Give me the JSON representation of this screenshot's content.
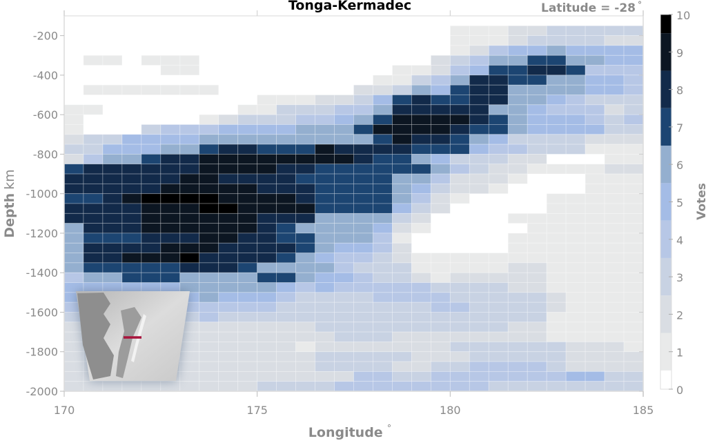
{
  "chart_data": {
    "type": "heatmap",
    "title": "Tonga-Kermadec",
    "subtitle": "Latitude = -28",
    "subtitle_unit": "°",
    "xlabel": "Longitude",
    "xlabel_unit": "°",
    "ylabel": "Depth",
    "ylabel_unit": "km",
    "colorbar_label": "Votes",
    "xlim": [
      170,
      185
    ],
    "ylim": [
      -2000,
      -100
    ],
    "x_ticks": [
      170,
      175,
      180,
      185
    ],
    "y_ticks": [
      -200,
      -400,
      -600,
      -800,
      -1000,
      -1200,
      -1400,
      -1600,
      -1800,
      -2000
    ],
    "colorbar_ticks": [
      0,
      1,
      2,
      3,
      4,
      5,
      6,
      7,
      8,
      9,
      10
    ],
    "cell_size": {
      "longitude": 0.5,
      "depth_km": 50
    },
    "x_start": 170,
    "y_top": -150,
    "colors": [
      "#ffffff",
      "#e9eaea",
      "#d9dde3",
      "#c8d2e3",
      "#b7c7e6",
      "#a4bce6",
      "#94afcf",
      "#1c4572",
      "#122a4a",
      "#0c1622",
      "#000000"
    ],
    "inset_map": "globe-region-map-with-red-section-line",
    "section_line_color": "#a8143c",
    "values": [
      [
        0,
        0,
        0,
        0,
        0,
        0,
        0,
        0,
        0,
        0,
        0,
        0,
        0,
        0,
        0,
        0,
        0,
        0,
        0,
        0,
        1,
        1,
        1,
        2,
        2,
        3,
        3,
        3,
        3,
        3
      ],
      [
        0,
        0,
        0,
        0,
        0,
        0,
        0,
        0,
        0,
        0,
        0,
        0,
        0,
        0,
        0,
        0,
        0,
        0,
        0,
        0,
        1,
        1,
        1,
        2,
        3,
        3,
        3,
        3,
        2,
        2
      ],
      [
        0,
        0,
        0,
        0,
        0,
        0,
        0,
        0,
        0,
        0,
        0,
        0,
        0,
        0,
        0,
        0,
        0,
        0,
        0,
        0,
        1,
        2,
        4,
        5,
        5,
        6,
        5,
        5,
        5,
        5
      ],
      [
        0,
        1,
        1,
        0,
        1,
        1,
        1,
        0,
        0,
        0,
        0,
        0,
        0,
        0,
        0,
        0,
        0,
        0,
        0,
        2,
        3,
        4,
        6,
        6,
        7,
        7,
        6,
        6,
        5,
        5
      ],
      [
        0,
        0,
        0,
        0,
        0,
        1,
        1,
        0,
        0,
        0,
        0,
        0,
        0,
        0,
        0,
        0,
        0,
        1,
        1,
        2,
        4,
        5,
        7,
        7,
        8,
        8,
        7,
        4,
        4,
        4
      ],
      [
        0,
        0,
        0,
        0,
        0,
        0,
        0,
        0,
        0,
        0,
        0,
        0,
        0,
        0,
        0,
        0,
        1,
        1,
        3,
        4,
        6,
        8,
        8,
        7,
        7,
        6,
        6,
        5,
        5,
        4
      ],
      [
        0,
        1,
        1,
        1,
        1,
        1,
        1,
        1,
        0,
        0,
        0,
        0,
        0,
        0,
        0,
        2,
        2,
        3,
        6,
        5,
        7,
        8,
        8,
        6,
        6,
        6,
        6,
        5,
        5,
        4
      ],
      [
        0,
        0,
        0,
        0,
        0,
        0,
        0,
        0,
        0,
        0,
        1,
        1,
        1,
        2,
        2,
        3,
        5,
        7,
        8,
        7,
        7,
        8,
        8,
        6,
        6,
        5,
        4,
        3,
        3,
        3
      ],
      [
        1,
        1,
        0,
        0,
        0,
        0,
        0,
        0,
        0,
        1,
        1,
        3,
        3,
        3,
        4,
        4,
        6,
        8,
        8,
        8,
        8,
        8,
        6,
        6,
        5,
        4,
        4,
        4,
        2,
        3
      ],
      [
        1,
        0,
        0,
        0,
        0,
        0,
        0,
        1,
        2,
        3,
        3,
        3,
        4,
        4,
        5,
        6,
        7,
        9,
        9,
        9,
        9,
        8,
        7,
        6,
        5,
        5,
        5,
        4,
        3,
        4
      ],
      [
        1,
        0,
        0,
        0,
        3,
        4,
        4,
        4,
        5,
        5,
        5,
        5,
        6,
        6,
        6,
        7,
        9,
        9,
        9,
        9,
        8,
        7,
        7,
        6,
        5,
        5,
        5,
        5,
        3,
        3
      ],
      [
        2,
        3,
        3,
        5,
        5,
        5,
        5,
        6,
        6,
        6,
        6,
        6,
        6,
        6,
        6,
        6,
        7,
        9,
        8,
        8,
        7,
        6,
        5,
        3,
        3,
        3,
        3,
        2,
        2,
        2
      ],
      [
        3,
        3,
        5,
        5,
        5,
        6,
        6,
        7,
        8,
        8,
        7,
        7,
        7,
        9,
        8,
        8,
        8,
        8,
        7,
        7,
        7,
        5,
        4,
        4,
        3,
        3,
        3,
        1,
        1,
        1
      ],
      [
        2,
        4,
        6,
        6,
        7,
        8,
        8,
        9,
        9,
        9,
        9,
        9,
        9,
        9,
        9,
        8,
        7,
        7,
        6,
        5,
        3,
        3,
        3,
        2,
        2,
        0,
        0,
        0,
        1,
        1
      ],
      [
        7,
        8,
        8,
        8,
        8,
        8,
        8,
        9,
        9,
        9,
        9,
        8,
        8,
        7,
        7,
        7,
        7,
        7,
        7,
        6,
        4,
        3,
        2,
        2,
        1,
        1,
        1,
        1,
        2,
        2
      ],
      [
        8,
        8,
        8,
        8,
        8,
        8,
        9,
        9,
        8,
        8,
        8,
        8,
        7,
        7,
        7,
        7,
        7,
        6,
        6,
        4,
        2,
        2,
        2,
        1,
        0,
        0,
        0,
        1,
        1,
        1
      ],
      [
        8,
        8,
        8,
        8,
        8,
        9,
        9,
        9,
        9,
        9,
        8,
        8,
        8,
        7,
        7,
        7,
        7,
        6,
        5,
        3,
        2,
        2,
        1,
        0,
        0,
        0,
        0,
        1,
        1,
        1
      ],
      [
        7,
        7,
        8,
        9,
        10,
        10,
        10,
        10,
        9,
        9,
        9,
        9,
        8,
        7,
        7,
        7,
        7,
        6,
        4,
        2,
        1,
        0,
        0,
        0,
        0,
        1,
        1,
        1,
        1,
        1
      ],
      [
        8,
        8,
        8,
        8,
        9,
        9,
        9,
        10,
        10,
        9,
        9,
        9,
        9,
        7,
        7,
        7,
        7,
        5,
        3,
        2,
        0,
        0,
        0,
        0,
        0,
        1,
        1,
        1,
        1,
        1
      ],
      [
        8,
        8,
        8,
        8,
        9,
        9,
        9,
        9,
        9,
        9,
        8,
        8,
        8,
        6,
        6,
        6,
        6,
        3,
        2,
        0,
        0,
        0,
        0,
        1,
        1,
        1,
        1,
        1,
        1,
        1
      ],
      [
        6,
        8,
        8,
        8,
        9,
        9,
        9,
        9,
        9,
        9,
        8,
        7,
        6,
        6,
        6,
        6,
        5,
        2,
        1,
        0,
        0,
        0,
        0,
        0,
        1,
        1,
        1,
        1,
        1,
        1
      ],
      [
        6,
        7,
        7,
        7,
        8,
        8,
        8,
        9,
        9,
        8,
        8,
        7,
        7,
        6,
        6,
        6,
        4,
        1,
        0,
        0,
        0,
        0,
        0,
        1,
        1,
        1,
        1,
        1,
        1,
        1
      ],
      [
        6,
        8,
        8,
        8,
        8,
        9,
        9,
        9,
        8,
        8,
        8,
        8,
        7,
        6,
        5,
        5,
        4,
        2,
        0,
        0,
        0,
        0,
        0,
        1,
        1,
        1,
        1,
        1,
        1,
        1
      ],
      [
        6,
        8,
        8,
        9,
        9,
        9,
        10,
        8,
        8,
        8,
        8,
        7,
        6,
        5,
        4,
        4,
        3,
        2,
        1,
        1,
        1,
        1,
        1,
        1,
        1,
        1,
        1,
        1,
        1,
        1
      ],
      [
        6,
        7,
        7,
        7,
        7,
        7,
        8,
        8,
        8,
        7,
        6,
        6,
        6,
        6,
        4,
        3,
        3,
        3,
        1,
        1,
        1,
        1,
        1,
        2,
        2,
        1,
        1,
        1,
        1,
        1
      ],
      [
        4,
        6,
        6,
        7,
        7,
        7,
        6,
        6,
        6,
        6,
        7,
        7,
        6,
        5,
        5,
        4,
        3,
        3,
        2,
        1,
        2,
        2,
        2,
        2,
        2,
        1,
        1,
        1,
        1,
        1
      ],
      [
        5,
        5,
        5,
        5,
        5,
        5,
        6,
        6,
        6,
        6,
        6,
        5,
        4,
        5,
        4,
        4,
        4,
        4,
        4,
        3,
        3,
        3,
        3,
        2,
        2,
        1,
        1,
        1,
        1,
        1
      ],
      [
        5,
        5,
        5,
        5,
        5,
        5,
        5,
        6,
        5,
        5,
        5,
        4,
        3,
        3,
        3,
        3,
        4,
        4,
        4,
        4,
        3,
        3,
        3,
        3,
        3,
        2,
        1,
        1,
        1,
        1
      ],
      [
        4,
        4,
        4,
        4,
        4,
        4,
        4,
        4,
        4,
        4,
        4,
        3,
        3,
        3,
        3,
        3,
        3,
        3,
        3,
        4,
        4,
        3,
        3,
        3,
        3,
        2,
        1,
        1,
        1,
        1
      ],
      [
        3,
        3,
        3,
        3,
        3,
        3,
        3,
        4,
        3,
        3,
        3,
        3,
        3,
        3,
        3,
        3,
        3,
        3,
        3,
        3,
        3,
        3,
        3,
        3,
        3,
        1,
        1,
        1,
        1,
        1
      ],
      [
        2,
        2,
        2,
        2,
        2,
        2,
        2,
        2,
        2,
        2,
        2,
        2,
        2,
        3,
        3,
        3,
        3,
        3,
        3,
        3,
        3,
        3,
        3,
        2,
        2,
        1,
        1,
        1,
        1,
        1
      ],
      [
        2,
        2,
        2,
        2,
        2,
        2,
        2,
        2,
        2,
        2,
        2,
        2,
        2,
        2,
        3,
        3,
        3,
        2,
        2,
        2,
        2,
        2,
        2,
        2,
        2,
        1,
        1,
        1,
        1,
        1
      ],
      [
        2,
        2,
        2,
        2,
        2,
        2,
        2,
        2,
        2,
        2,
        2,
        2,
        1,
        2,
        2,
        2,
        2,
        2,
        2,
        2,
        3,
        3,
        3,
        3,
        3,
        3,
        2,
        2,
        2,
        1
      ],
      [
        2,
        2,
        2,
        2,
        2,
        2,
        2,
        2,
        2,
        2,
        2,
        2,
        2,
        3,
        3,
        3,
        3,
        3,
        2,
        2,
        2,
        3,
        3,
        3,
        3,
        3,
        2,
        2,
        2,
        2
      ],
      [
        2,
        2,
        2,
        2,
        2,
        2,
        2,
        2,
        2,
        2,
        2,
        2,
        2,
        3,
        3,
        3,
        3,
        2,
        2,
        3,
        3,
        4,
        4,
        4,
        4,
        3,
        2,
        2,
        2,
        2
      ],
      [
        2,
        2,
        2,
        2,
        2,
        2,
        2,
        2,
        2,
        2,
        2,
        2,
        2,
        2,
        2,
        4,
        4,
        3,
        3,
        4,
        4,
        4,
        4,
        4,
        4,
        4,
        5,
        5,
        3,
        3
      ],
      [
        2,
        2,
        2,
        2,
        2,
        2,
        2,
        2,
        2,
        2,
        3,
        3,
        3,
        3,
        4,
        4,
        4,
        4,
        4,
        4,
        4,
        4,
        3,
        3,
        3,
        3,
        3,
        3,
        3,
        3
      ]
    ]
  }
}
